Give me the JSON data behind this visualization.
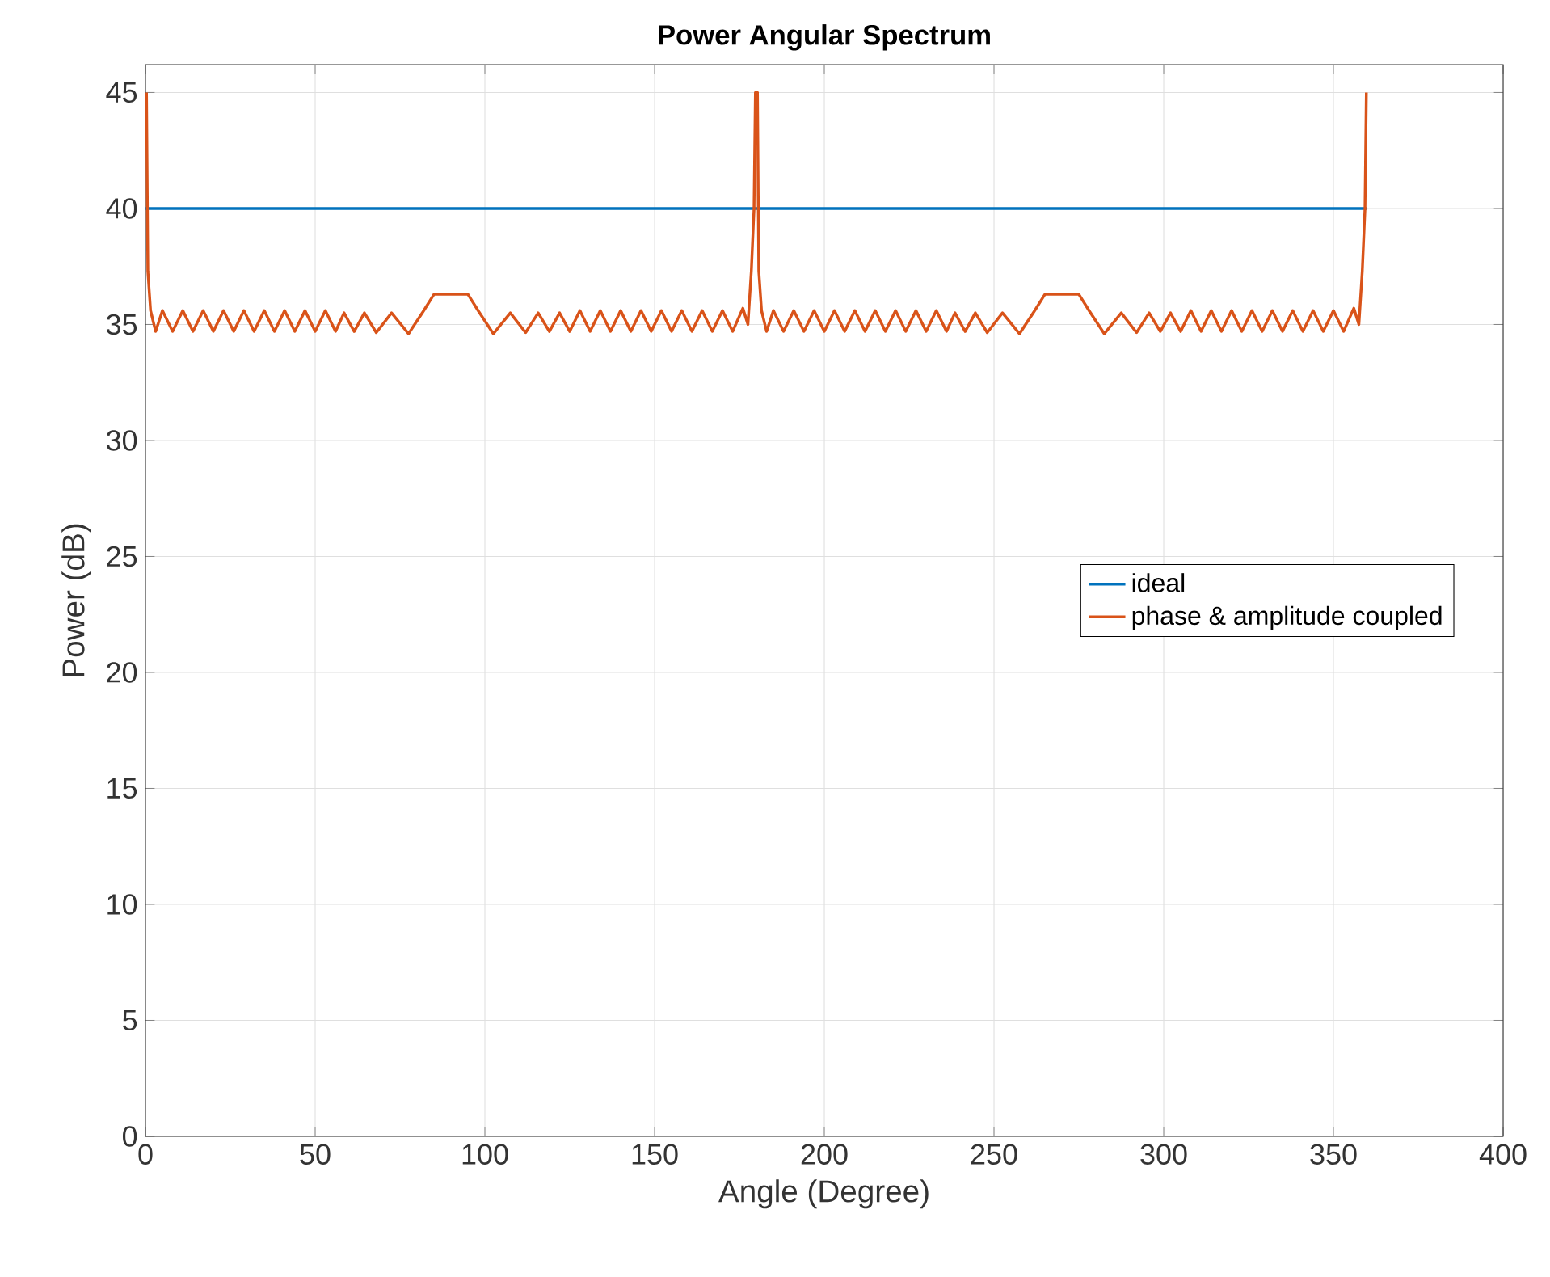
{
  "chart_data": {
    "type": "line",
    "title": "Power Angular Spectrum",
    "xlabel": "Angle (Degree)",
    "ylabel": "Power (dB)",
    "xlim": [
      0,
      400
    ],
    "ylim": [
      0,
      46.2
    ],
    "xticks": [
      0,
      50,
      100,
      150,
      200,
      250,
      300,
      350,
      400
    ],
    "yticks": [
      0,
      5,
      10,
      15,
      20,
      25,
      30,
      35,
      40,
      45
    ],
    "grid": true,
    "legend": "right",
    "series": [
      {
        "name": "ideal",
        "color": "#0072bd",
        "x": [
          0,
          360
        ],
        "values": [
          40,
          40
        ]
      },
      {
        "name": "phase & amplitude coupled",
        "color": "#d95319",
        "x": [
          0.3,
          0.7,
          1.5,
          3,
          5,
          8,
          11,
          14,
          17,
          20,
          23,
          26,
          29,
          32,
          35,
          38,
          41,
          44,
          47,
          50,
          53,
          56,
          58.5,
          61.5,
          64.5,
          68,
          72.5,
          77.5,
          82,
          85,
          95,
          98,
          102.5,
          107.5,
          112,
          115.7,
          119,
          122,
          125,
          128,
          131,
          134,
          137,
          140,
          143,
          146,
          149,
          152,
          155,
          158,
          161,
          164,
          167,
          170,
          173,
          176,
          177.5,
          178.5,
          179.3,
          179.7,
          180.3,
          180.7,
          181.5,
          183,
          185,
          188,
          191,
          194,
          197,
          200,
          203,
          206,
          209,
          212,
          215,
          218,
          221,
          224,
          227,
          230,
          233,
          236,
          238.5,
          241.5,
          244.5,
          248,
          252.5,
          257.5,
          262,
          265,
          275,
          278,
          282.5,
          287.5,
          292,
          295.7,
          299,
          302,
          305,
          308,
          311,
          314,
          317,
          320,
          323,
          326,
          329,
          332,
          335,
          338,
          341,
          344,
          347,
          350,
          353,
          356,
          357.5,
          358.5,
          359.3,
          359.7
        ],
        "values": [
          45,
          37.3,
          35.6,
          34.7,
          35.6,
          34.7,
          35.6,
          34.7,
          35.6,
          34.7,
          35.6,
          34.7,
          35.6,
          34.7,
          35.6,
          34.7,
          35.6,
          34.7,
          35.6,
          34.7,
          35.6,
          34.7,
          35.5,
          34.7,
          35.5,
          34.65,
          35.5,
          34.6,
          35.6,
          36.3,
          36.3,
          35.6,
          34.6,
          35.5,
          34.65,
          35.5,
          34.7,
          35.5,
          34.7,
          35.6,
          34.7,
          35.6,
          34.7,
          35.6,
          34.7,
          35.6,
          34.7,
          35.6,
          34.7,
          35.6,
          34.7,
          35.6,
          34.7,
          35.6,
          34.7,
          35.7,
          35.0,
          37.3,
          40,
          45,
          45,
          37.3,
          35.6,
          34.7,
          35.6,
          34.7,
          35.6,
          34.7,
          35.6,
          34.7,
          35.6,
          34.7,
          35.6,
          34.7,
          35.6,
          34.7,
          35.6,
          34.7,
          35.6,
          34.7,
          35.6,
          34.7,
          35.5,
          34.7,
          35.5,
          34.65,
          35.5,
          34.6,
          35.6,
          36.3,
          36.3,
          35.6,
          34.6,
          35.5,
          34.65,
          35.5,
          34.7,
          35.5,
          34.7,
          35.6,
          34.7,
          35.6,
          34.7,
          35.6,
          34.7,
          35.6,
          34.7,
          35.6,
          34.7,
          35.6,
          34.7,
          35.6,
          34.7,
          35.6,
          34.7,
          35.7,
          35.0,
          37.3,
          40,
          45
        ]
      }
    ]
  }
}
